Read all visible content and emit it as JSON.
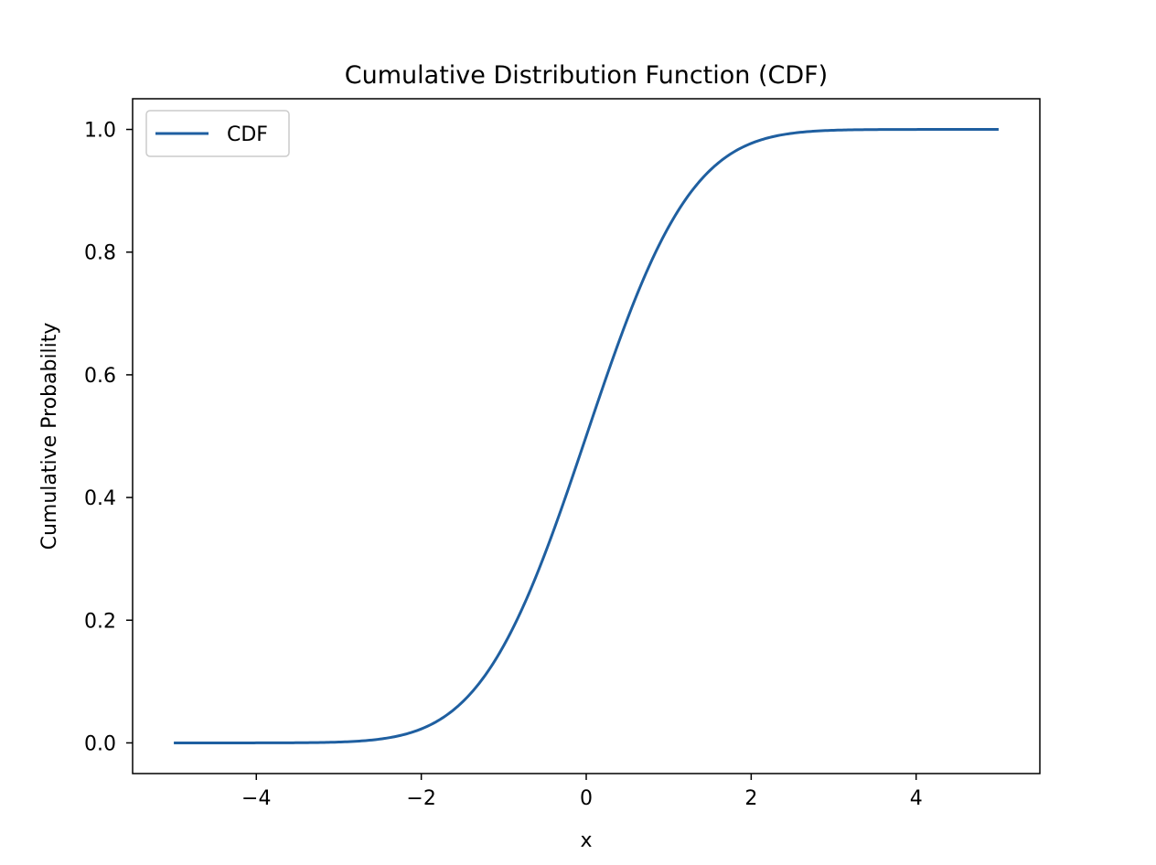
{
  "chart_data": {
    "type": "line",
    "title": "Cumulative Distribution Function (CDF)",
    "xlabel": "x",
    "ylabel": "Cumulative Probability",
    "xlim": [
      -5.5,
      5.5
    ],
    "ylim": [
      -0.05,
      1.05
    ],
    "x_ticks": [
      -4,
      -2,
      0,
      2,
      4
    ],
    "x_tick_labels": [
      "−4",
      "−2",
      "0",
      "2",
      "4"
    ],
    "y_ticks": [
      0.0,
      0.2,
      0.4,
      0.6,
      0.8,
      1.0
    ],
    "y_tick_labels": [
      "0.0",
      "0.2",
      "0.4",
      "0.6",
      "0.8",
      "1.0"
    ],
    "grid": false,
    "legend": {
      "placement": "top-left",
      "entries": [
        "CDF"
      ]
    },
    "series": [
      {
        "name": "CDF",
        "color": "#1f5fa0",
        "x": [
          -5.0,
          -4.5,
          -4.0,
          -3.5,
          -3.0,
          -2.5,
          -2.25,
          -2.0,
          -1.75,
          -1.5,
          -1.25,
          -1.0,
          -0.75,
          -0.5,
          -0.25,
          0.0,
          0.25,
          0.5,
          0.75,
          1.0,
          1.25,
          1.5,
          1.75,
          2.0,
          2.25,
          2.5,
          3.0,
          3.5,
          4.0,
          4.5,
          5.0
        ],
        "y": [
          0.0,
          0.0,
          0.0,
          0.0002,
          0.0013,
          0.0062,
          0.0122,
          0.0228,
          0.0401,
          0.0668,
          0.1056,
          0.1587,
          0.2266,
          0.3085,
          0.4013,
          0.5,
          0.5987,
          0.6915,
          0.7734,
          0.8413,
          0.8944,
          0.9332,
          0.9599,
          0.9772,
          0.9878,
          0.9938,
          0.9987,
          0.9998,
          1.0,
          1.0,
          1.0
        ]
      }
    ]
  }
}
